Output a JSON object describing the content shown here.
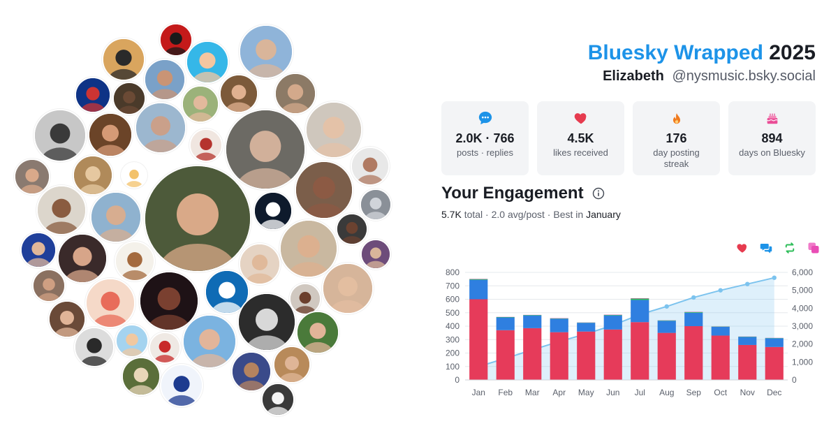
{
  "header": {
    "brand": "Bluesky Wrapped",
    "year": "2025",
    "name": "Elizabeth",
    "handle": "@nysmusic.bsky.social"
  },
  "stats": [
    {
      "icon": "speech-bubble-icon",
      "value": "2.0K · 766",
      "label": "posts · replies",
      "color": "#1d93e8"
    },
    {
      "icon": "heart-icon",
      "value": "4.5K",
      "label": "likes received",
      "color": "#e63b4f"
    },
    {
      "icon": "flame-icon",
      "value": "176",
      "label": "day posting streak",
      "color": "#f07a1e"
    },
    {
      "icon": "cake-icon",
      "value": "894",
      "label": "days on Bluesky",
      "color": "#e94d96"
    }
  ],
  "engagement": {
    "title": "Your Engagement",
    "total": "5.7K",
    "total_word": "total",
    "sep1": " · ",
    "avg": "2.0 avg/post",
    "sep2": " · ",
    "best_prefix": "Best in ",
    "best_month": "January"
  },
  "legend_icons": [
    {
      "icon": "heart-icon",
      "color": "#e63b4f"
    },
    {
      "icon": "reply-bubbles-icon",
      "color": "#1d93e8"
    },
    {
      "icon": "repost-icon",
      "color": "#2ebd59"
    },
    {
      "icon": "quote-icon",
      "color": "#e94db5"
    }
  ],
  "chart_data": {
    "type": "bar",
    "stacked": true,
    "categories": [
      "Jan",
      "Feb",
      "Mar",
      "Apr",
      "May",
      "Jun",
      "Jul",
      "Aug",
      "Sep",
      "Oct",
      "Nov",
      "Dec"
    ],
    "series": [
      {
        "values": [
          600,
          370,
          385,
          355,
          360,
          375,
          430,
          350,
          400,
          330,
          260,
          245
        ],
        "color": "#e63b5a",
        "axis": "left"
      },
      {
        "values": [
          145,
          95,
          95,
          100,
          65,
          105,
          165,
          90,
          100,
          65,
          60,
          65
        ],
        "color": "#2f7fe0",
        "axis": "left"
      },
      {
        "values": [
          5,
          3,
          3,
          3,
          2,
          4,
          10,
          3,
          5,
          2,
          2,
          2
        ],
        "color": "#2ebd59",
        "axis": "left"
      },
      {
        "values": [
          2,
          1,
          1,
          2,
          1,
          2,
          3,
          1,
          2,
          1,
          1,
          1
        ],
        "color": "#e94db5",
        "axis": "left"
      },
      {
        "type": "area",
        "values": [
          750,
          1200,
          1680,
          2140,
          2570,
          3050,
          3650,
          4100,
          4600,
          5000,
          5350,
          5700
        ],
        "color": "#7cc3ee",
        "axis": "right"
      }
    ],
    "ylim": [
      0,
      800
    ],
    "y_ticks": [
      0,
      100,
      200,
      300,
      400,
      500,
      600,
      700,
      800
    ],
    "y2lim": [
      0,
      6000
    ],
    "y2_ticks": [
      "0",
      "1,000",
      "2,000",
      "3,000",
      "4,000",
      "5,000",
      "6,000"
    ],
    "grid": true
  },
  "avatars": [
    {
      "name": "avatar-seal",
      "bg": "#c41a1a",
      "fg": "#1a1a1a"
    },
    {
      "name": "avatar-cartoon",
      "bg": "#35b7e8",
      "fg": "#f4c6a0"
    },
    {
      "name": "avatar-lakeside",
      "bg": "#8fb4d9",
      "fg": "#d9b59a"
    },
    {
      "name": "avatar-suit-man",
      "bg": "#d9a55e",
      "fg": "#2a2a2a"
    },
    {
      "name": "avatar-cap-man",
      "bg": "#7aa1c8",
      "fg": "#c99475"
    },
    {
      "name": "avatar-cubs-logo",
      "bg": "#0e3386",
      "fg": "#cc3433"
    },
    {
      "name": "avatar-man-dark",
      "bg": "#4a3a2a",
      "fg": "#6b4a35"
    },
    {
      "name": "avatar-woman-glasses",
      "bg": "#9bb27a",
      "fg": "#e2b99c"
    },
    {
      "name": "avatar-redhead",
      "bg": "#7c5a3a",
      "fg": "#e0b190"
    },
    {
      "name": "avatar-young-man",
      "bg": "#8c7a66",
      "fg": "#d3a98b"
    },
    {
      "name": "avatar-bw-woman",
      "bg": "#c7c7c7",
      "fg": "#3a3a3a"
    },
    {
      "name": "avatar-sunglasses",
      "bg": "#6b4428",
      "fg": "#d59a76"
    },
    {
      "name": "avatar-glasses-man",
      "bg": "#9cb7cf",
      "fg": "#caa08a"
    },
    {
      "name": "avatar-woman-smile",
      "bg": "#f0e6e0",
      "fg": "#b5342e"
    },
    {
      "name": "avatar-dog-woman",
      "bg": "#6c6a64",
      "fg": "#d1b09a"
    },
    {
      "name": "avatar-pink-glasses",
      "bg": "#cfc7bd",
      "fg": "#e4c2a8"
    },
    {
      "name": "avatar-smiling-man",
      "bg": "#e8e8e8",
      "fg": "#b07a62"
    },
    {
      "name": "avatar-woman-red",
      "bg": "#8a7a70",
      "fg": "#d9a98a"
    },
    {
      "name": "avatar-group-table",
      "bg": "#b08a5a",
      "fg": "#e6c8a0"
    },
    {
      "name": "avatar-emoji-woman",
      "bg": "#ffffff",
      "fg": "#f3c26b"
    },
    {
      "name": "avatar-main-oak",
      "bg": "#4d5a3a",
      "fg": "#d9a988"
    },
    {
      "name": "avatar-nbc-news",
      "bg": "#0e1a2c",
      "fg": "#ffffff"
    },
    {
      "name": "avatar-sunglass-woman",
      "bg": "#7b5e4a",
      "fg": "#8c5a44"
    },
    {
      "name": "avatar-brain-sign",
      "bg": "#8a9098",
      "fg": "#d0d4da"
    },
    {
      "name": "avatar-woman-curly",
      "bg": "#dcd6cc",
      "fg": "#8a5c40"
    },
    {
      "name": "avatar-couple",
      "bg": "#8fb2cf",
      "fg": "#d7ad90"
    },
    {
      "name": "avatar-woman-yellow",
      "bg": "#3a3a3a",
      "fg": "#6b4230"
    },
    {
      "name": "avatar-jeopardy-host",
      "bg": "#1f3f9a",
      "fg": "#e0b799"
    },
    {
      "name": "avatar-bald-man",
      "bg": "#3a2a2a",
      "fg": "#d7a589"
    },
    {
      "name": "avatar-sketch",
      "bg": "#f4f1ea",
      "fg": "#a46a3e"
    },
    {
      "name": "avatar-blonde-woman",
      "bg": "#e5d3c3",
      "fg": "#e0b99a"
    },
    {
      "name": "avatar-glasses-woman-2",
      "bg": "#c9b8a0",
      "fg": "#dcb08f"
    },
    {
      "name": "avatar-purple-bg",
      "bg": "#6d4c7a",
      "fg": "#d9b59a"
    },
    {
      "name": "avatar-bearded-man",
      "bg": "#8a7060",
      "fg": "#cf9f82"
    },
    {
      "name": "avatar-chronicle-c",
      "bg": "#0f6bb5",
      "fg": "#ffffff"
    },
    {
      "name": "avatar-dark-portrait",
      "bg": "#1e1216",
      "fg": "#7a4030"
    },
    {
      "name": "avatar-anime-girl",
      "bg": "#f5d9c8",
      "fg": "#e86c5a"
    },
    {
      "name": "avatar-woman-window",
      "bg": "#d6b59a",
      "fg": "#e3bea0"
    },
    {
      "name": "avatar-monster",
      "bg": "#2c2c2c",
      "fg": "#d8d8d8"
    },
    {
      "name": "avatar-selfie-woman",
      "bg": "#6a4a38",
      "fg": "#e0b497"
    },
    {
      "name": "avatar-woman-pearls",
      "bg": "#d0c8c0",
      "fg": "#6b3f2c"
    },
    {
      "name": "avatar-woman-garden",
      "bg": "#4a7a3a",
      "fg": "#e1b498"
    },
    {
      "name": "avatar-bw-singer",
      "bg": "#dcdcdc",
      "fg": "#2a2a2a"
    },
    {
      "name": "avatar-cartoon-man",
      "bg": "#a4d3ef",
      "fg": "#f0c8a0"
    },
    {
      "name": "avatar-woman-red-dress",
      "bg": "#efe9e4",
      "fg": "#c82a2a"
    },
    {
      "name": "avatar-superman",
      "bg": "#7bb3e0",
      "fg": "#e2b59a"
    },
    {
      "name": "avatar-man-beanie",
      "bg": "#3a4a8a",
      "fg": "#b5835f"
    },
    {
      "name": "avatar-woman-flowers",
      "bg": "#b88a5a",
      "fg": "#dfb597"
    },
    {
      "name": "avatar-bride",
      "bg": "#5a6e3a",
      "fg": "#e8d6b8"
    },
    {
      "name": "avatar-wgn9-news",
      "bg": "#f0f4fb",
      "fg": "#1d3b8f"
    },
    {
      "name": "avatar-goose",
      "bg": "#3a3a3a",
      "fg": "#f5f5f5"
    }
  ]
}
